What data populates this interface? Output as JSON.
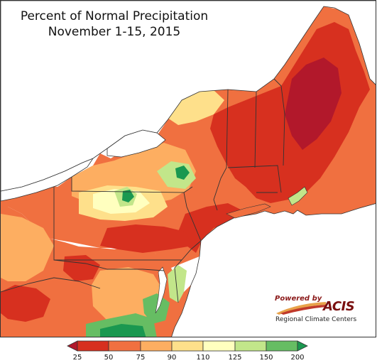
{
  "title": {
    "line1": "Percent of Normal Precipitation",
    "line2": "November 1-15, 2015"
  },
  "logo": {
    "powered_by": "Powered by",
    "name": "ACIS",
    "subtitle": "Regional Climate Centers"
  },
  "legend": {
    "ticks": [
      "25",
      "50",
      "75",
      "90",
      "110",
      "125",
      "150",
      "200"
    ],
    "bins": [
      {
        "range": "<25",
        "color": "#b2182b"
      },
      {
        "range": "25-50",
        "color": "#d7301f"
      },
      {
        "range": "50-75",
        "color": "#f07040"
      },
      {
        "range": "75-90",
        "color": "#fdae61"
      },
      {
        "range": "90-110",
        "color": "#fee08b"
      },
      {
        "range": "110-125",
        "color": "#ffffbf"
      },
      {
        "range": "125-150",
        "color": "#c2e68a"
      },
      {
        "range": "150-200",
        "color": "#66bd63"
      },
      {
        "range": ">200",
        "color": "#1a9850"
      }
    ]
  },
  "colors": {
    "water": "#ffffff",
    "border": "#333333",
    "logo_red": "#7a1010"
  }
}
